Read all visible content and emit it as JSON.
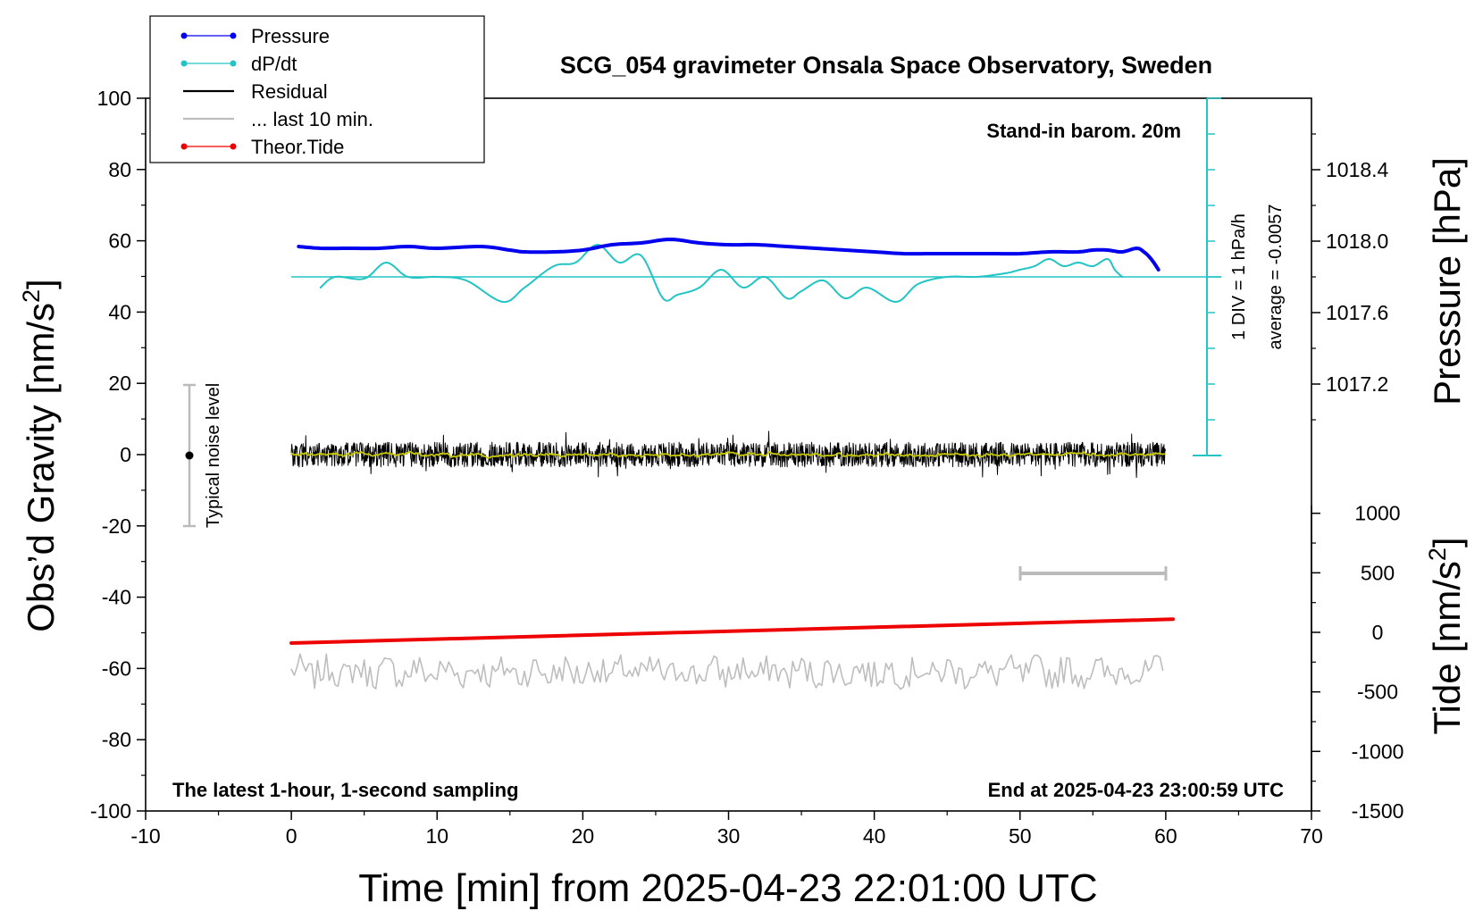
{
  "chart_data": {
    "type": "line",
    "title": "SCG_054 gravimeter Onsala Space Observatory, Sweden",
    "xlabel": "Time [min] from 2025-04-23 22:01:00 UTC",
    "ylabel": "Obs’d Gravity [nm/s",
    "ylabel_sup": "2",
    "ylabel_close": "]",
    "y2label": "Pressure [hPa]",
    "y3label": "Tide [nm/s",
    "y3label_sup": "2",
    "y3label_close": "]",
    "xlim": [
      -10,
      70
    ],
    "ylim": [
      -100,
      100
    ],
    "x_ticks": [
      -10,
      0,
      10,
      20,
      30,
      40,
      50,
      60,
      70
    ],
    "y_ticks": [
      -100,
      -80,
      -60,
      -40,
      -20,
      0,
      20,
      40,
      60,
      80,
      100
    ],
    "pressure_ticks": [
      "1017.2",
      "1017.6",
      "1018.0",
      "1018.4"
    ],
    "tide_ticks": [
      -1500,
      -1000,
      -500,
      0,
      500,
      1000
    ],
    "grid": false,
    "legend_position": "top-left",
    "notes": {
      "station": "Stand-in barom. 20m",
      "bottom_left": "The latest 1-hour, 1-second sampling",
      "bottom_right": "End at 2025-04-23 23:00:59 UTC",
      "div_scale": "1 DIV = 1 hPa/h",
      "div_average": "average = -0.0057",
      "noise_label": "Typical noise level"
    },
    "colors": {
      "pressure": "#0000ee",
      "dpdt": "#22c4c4",
      "residual": "#000000",
      "residual_smooth": "#c8c800",
      "last10": "#bdbdbd",
      "tide": "#ee0000"
    },
    "series": [
      {
        "name": "Pressure",
        "axis": "pressure_hPa",
        "x": [
          0.5,
          2,
          4,
          6,
          8,
          10,
          13,
          15,
          16,
          18,
          20,
          22,
          24,
          26,
          28,
          30,
          32,
          34,
          36,
          38,
          40,
          42,
          44,
          46,
          48,
          50,
          52,
          54,
          55,
          56,
          57,
          58,
          58.5,
          59,
          59.5
        ],
        "values": [
          1017.97,
          1017.96,
          1017.96,
          1017.96,
          1017.97,
          1017.96,
          1017.97,
          1017.95,
          1017.94,
          1017.94,
          1017.95,
          1017.98,
          1017.99,
          1018.01,
          1017.99,
          1017.98,
          1017.98,
          1017.97,
          1017.96,
          1017.95,
          1017.94,
          1017.93,
          1017.93,
          1017.93,
          1017.93,
          1017.93,
          1017.94,
          1017.94,
          1017.95,
          1017.95,
          1017.94,
          1017.96,
          1017.94,
          1017.9,
          1017.84
        ]
      },
      {
        "name": "dP/dt",
        "axis": "div_hPa_per_h",
        "x": [
          2,
          3,
          5,
          6.5,
          8,
          10,
          12,
          14.5,
          16,
          18,
          19.5,
          21,
          22.5,
          24,
          25.5,
          26.5,
          28,
          29.5,
          31,
          32.5,
          34,
          35,
          36.5,
          38,
          39.5,
          41.5,
          43,
          45,
          47,
          49,
          50,
          51,
          52,
          53,
          54,
          55,
          56,
          56.5,
          57
        ],
        "values": [
          -0.3,
          0.0,
          -0.05,
          0.4,
          0.0,
          0.0,
          -0.1,
          -0.7,
          -0.3,
          0.3,
          0.4,
          0.9,
          0.4,
          0.6,
          -0.6,
          -0.5,
          -0.3,
          0.2,
          -0.3,
          0.0,
          -0.6,
          -0.4,
          -0.1,
          -0.6,
          -0.3,
          -0.7,
          -0.2,
          0.0,
          0.0,
          0.1,
          0.2,
          0.3,
          0.5,
          0.3,
          0.4,
          0.3,
          0.5,
          0.2,
          0.0
        ]
      },
      {
        "name": "Residual",
        "axis": "gravity",
        "x_range": [
          0,
          60
        ],
        "center": 0,
        "spread": 3.5
      },
      {
        "name": "... last 10 min.",
        "axis": "gravity",
        "x_range": [
          0,
          60
        ],
        "center": -61,
        "spread": 2.5
      },
      {
        "name": "Theor.Tide",
        "axis": "tide_nm_s2",
        "x": [
          0,
          60.5
        ],
        "values": [
          -90,
          110
        ]
      }
    ],
    "legend": [
      "Pressure",
      "dP/dt",
      "Residual",
      "... last 10 min.",
      "Theor.Tide"
    ]
  }
}
